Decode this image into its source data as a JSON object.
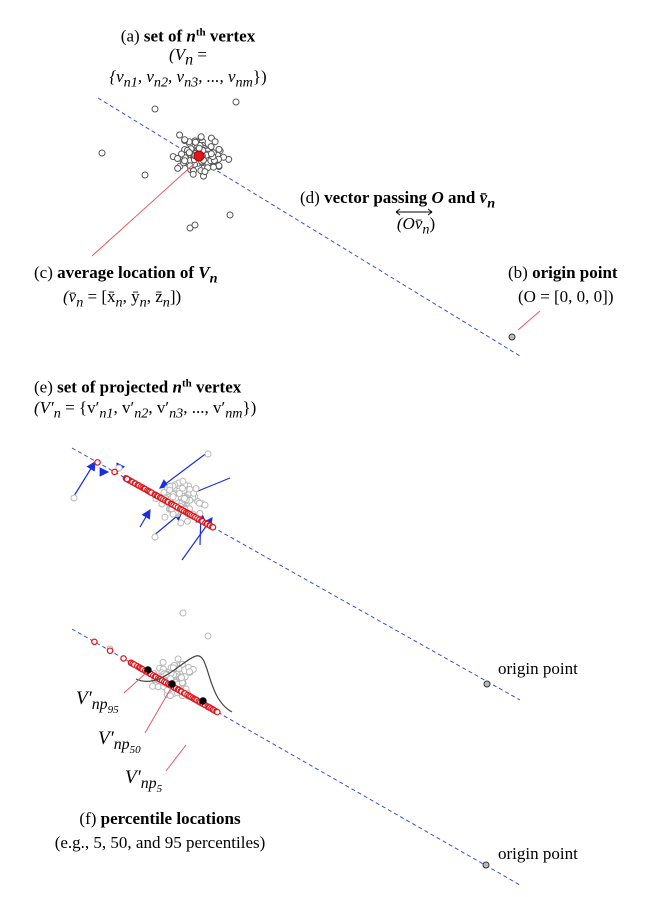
{
  "labels": {
    "a": {
      "prefix": "(a)",
      "bold": "set of",
      "n": "n",
      "sup": "th",
      "suffix": "vertex",
      "l2": "(V",
      "l2sub": "n",
      "l2eq": " =",
      "l3": "{v",
      "l3a": "n1",
      "l3b": ", v",
      "l3c": "n2",
      "l3d": ", v",
      "l3e": "n3",
      "l3f": ", ..., v",
      "l3g": "nm",
      "l3h": "})"
    },
    "b": {
      "prefix": "(b)",
      "bold": "origin point",
      "l2": "(O  = [0, 0, 0])"
    },
    "c": {
      "prefix": "(c)",
      "bold": "average location of",
      "V": "V",
      "sub": "n",
      "l2a": "(v̄",
      "l2b": "n",
      "l2c": " = [x̄",
      "l2d": "n",
      "l2e": ", ȳ",
      "l2f": "n",
      "l2g": ", z̄",
      "l2h": "n",
      "l2i": "])"
    },
    "d": {
      "prefix": "(d)",
      "bold": "vector passing",
      "O": "O",
      "and": "and",
      "v": "v̄",
      "vsub": "n",
      "l2": "(Ov̄",
      "l2sub": "n",
      "l2end": ")"
    },
    "e": {
      "prefix": "(e)",
      "bold": "set of projected",
      "n": "n",
      "sup": "th",
      "suffix": "vertex",
      "l2": "(V′",
      "l2sub": "n",
      "l2rest": " = {v′",
      "s1": "n1",
      "r1": ", v′",
      "s2": "n2",
      "r2": ", v′",
      "s3": "n3",
      "r3": ", ..., v′",
      "s4": "nm",
      "r4": "})"
    },
    "f": {
      "prefix": "(f)",
      "bold": "percentile locations",
      "l2": "(e.g., 5, 50, and 95 percentiles)"
    },
    "origin1": "origin point",
    "origin2": "origin point",
    "p95": {
      "V": "V′",
      "sub": "np",
      "subsub": "95"
    },
    "p50": {
      "V": "V′",
      "sub": "np",
      "subsub": "50"
    },
    "p5": {
      "V": "V′",
      "sub": "np",
      "subsub": "5"
    }
  },
  "colors": {
    "axis": "#3a4fd8",
    "mean": "#e0161c",
    "pointer": "#e8585c",
    "arrow": "#1a2fe0",
    "point": "#555555",
    "grey_point": "#b8b8b8",
    "projected": "#e0161c",
    "percentile": "#000000",
    "curve": "#444444"
  }
}
